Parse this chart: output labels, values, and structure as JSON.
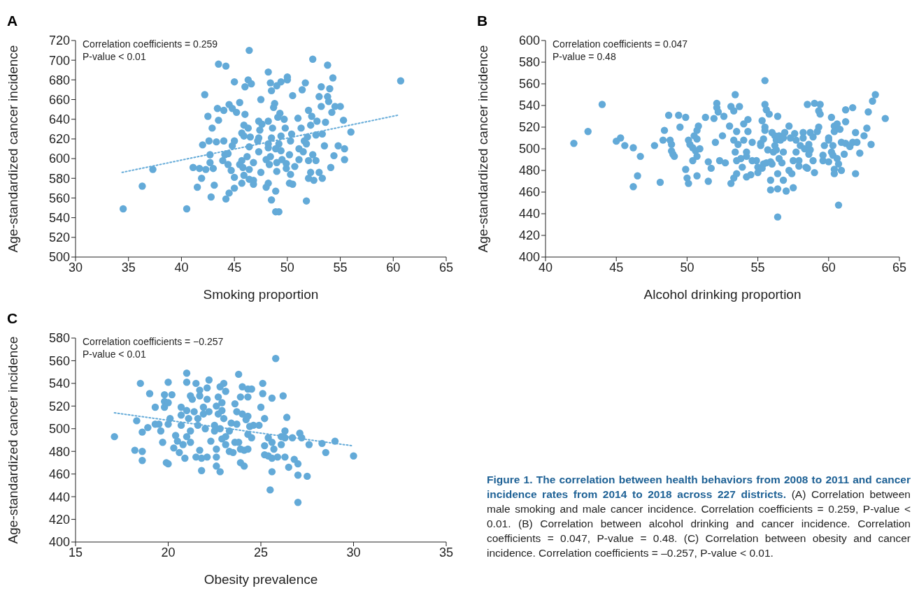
{
  "chart_data": [
    {
      "type": "scatter",
      "title": "A",
      "xlabel": "Smoking proportion",
      "ylabel": "Age-standardized cancer incidence",
      "annotations": [
        "Correlation coefficients = 0.259",
        "P-value < 0.01"
      ],
      "xlim": [
        30,
        65
      ],
      "xticks": [
        30,
        35,
        40,
        45,
        50,
        55,
        60,
        65
      ],
      "ylim": [
        500,
        720
      ],
      "yticks": [
        500,
        520,
        540,
        560,
        580,
        600,
        620,
        640,
        660,
        680,
        700,
        720
      ],
      "grid": false,
      "legend": false,
      "series": [
        {
          "type": "scatter",
          "marker": "circle",
          "color": "#63aad8",
          "x": [
            34.5,
            36.3,
            37.3,
            40.5,
            42.2,
            42.5,
            42.9,
            43.5,
            43.4,
            43.5,
            44.2,
            44.0,
            44.5,
            44.8,
            45.2,
            45.0,
            45.5,
            46.0,
            45.9,
            46.3,
            46.4,
            46.3,
            46.0,
            46.6,
            47.5,
            48.2,
            48.4,
            48.5,
            49.0,
            49.4,
            50.0,
            50.0,
            50.5,
            48.8,
            48.7,
            49.3,
            49.1,
            49.7,
            48.2,
            47.3,
            47.6,
            51.4,
            51.7,
            52.4,
            53.8,
            54.3,
            53.2,
            54.0,
            53.0,
            53.8,
            53.9,
            53.2,
            54.5,
            55.0,
            54.2,
            52.0,
            52.3,
            51.0,
            52.8,
            53.6,
            55.3,
            52.2,
            51.3,
            56.0,
            53.3,
            52.7,
            51.9,
            51.6,
            51.8,
            51.1,
            53.5,
            54.8,
            55.4,
            51.5,
            52.4,
            54.4,
            55.4,
            52.0,
            52.7,
            51.1,
            50.7,
            54.1,
            52.2,
            53.0,
            52.0,
            52.5,
            53.3,
            51.8,
            50.2,
            50.3,
            50.4,
            49.8,
            49.4,
            49.2,
            48.6,
            48.5,
            48.2,
            48.9,
            49.4,
            48.4,
            48.0,
            48.3,
            49.0,
            49.5,
            49.9,
            49.9,
            49.0,
            50.3,
            50.2,
            50.5,
            48.2,
            48.0,
            48.9,
            48.5,
            48.9,
            49.2,
            47.5,
            47.3,
            47.4,
            47.3,
            47.2,
            46.4,
            46.5,
            45.9,
            45.7,
            46.2,
            46.8,
            45.7,
            45.5,
            45.8,
            46.4,
            45.9,
            46.4,
            46.8,
            46.8,
            45.7,
            45.0,
            45.0,
            44.5,
            44.2,
            44.7,
            44.4,
            43.9,
            44.1,
            44.4,
            44.0,
            45.0,
            44.8,
            43.3,
            42.6,
            42.0,
            42.7,
            42.7,
            43.0,
            41.1,
            41.7,
            42.3,
            41.9,
            41.5,
            43.1,
            42.8,
            48.2,
            60.7
          ],
          "values": [
            549,
            572,
            589,
            549,
            665,
            643,
            631,
            639,
            651,
            696,
            694,
            649,
            655,
            651,
            647,
            678,
            657,
            645,
            634,
            631,
            710,
            680,
            673,
            676,
            660,
            688,
            677,
            669,
            674,
            678,
            683,
            680,
            664,
            656,
            652,
            646,
            642,
            640,
            638,
            638,
            635,
            670,
            677,
            701,
            695,
            682,
            673,
            671,
            663,
            663,
            658,
            653,
            653,
            653,
            647,
            649,
            643,
            641,
            638,
            637,
            639,
            634,
            631,
            627,
            625,
            624,
            622,
            618,
            615,
            610,
            613,
            613,
            610,
            607,
            604,
            603,
            599,
            598,
            598,
            599,
            592,
            591,
            586,
            586,
            580,
            578,
            580,
            557,
            604,
            618,
            625,
            631,
            623,
            615,
            631,
            621,
            611,
            610,
            608,
            602,
            599,
            594,
            596,
            599,
            595,
            590,
            587,
            584,
            575,
            574,
            575,
            571,
            567,
            558,
            546,
            546,
            586,
            607,
            629,
            621,
            618,
            612,
            622,
            623,
            626,
            602,
            596,
            598,
            594,
            591,
            589,
            583,
            579,
            578,
            574,
            575,
            581,
            570,
            565,
            559,
            588,
            594,
            598,
            604,
            605,
            618,
            618,
            613,
            617,
            618,
            614,
            604,
            596,
            590,
            591,
            590,
            589,
            580,
            571,
            573,
            561,
            615,
            679
          ]
        },
        {
          "type": "line",
          "marker": "none",
          "color": "#63aad8",
          "line_style": "dotted",
          "x": [
            34.4,
            60.4
          ],
          "values": [
            586,
            644
          ]
        }
      ]
    },
    {
      "type": "scatter",
      "title": "B",
      "xlabel": "Alcohol drinking proportion",
      "ylabel": "Age-standardized cancer incidence",
      "annotations": [
        "Correlation coefficients = 0.047",
        "P-value = 0.48"
      ],
      "xlim": [
        40,
        65
      ],
      "xticks": [
        40,
        45,
        50,
        55,
        60,
        65
      ],
      "ylim": [
        400,
        600
      ],
      "yticks": [
        400,
        420,
        440,
        460,
        480,
        500,
        520,
        540,
        560,
        580,
        600
      ],
      "grid": false,
      "legend": false,
      "series": [
        {
          "type": "scatter",
          "marker": "circle",
          "color": "#63aad8",
          "x": [
            42.0,
            43.0,
            44.0,
            45.0,
            45.3,
            45.6,
            46.2,
            46.7,
            46.5,
            46.2,
            47.7,
            48.1,
            48.3,
            48.4,
            48.7,
            48.8,
            48.9,
            48.9,
            49.0,
            49.1,
            49.4,
            49.5,
            49.9,
            50.1,
            50.2,
            50.4,
            50.6,
            50.9,
            50.7,
            50.4,
            49.9,
            50.0,
            50.1,
            50.7,
            50.5,
            50.7,
            50.7,
            50.8,
            51.3,
            51.5,
            51.5,
            51.7,
            51.9,
            52.1,
            52.1,
            52.2,
            52.6,
            52.0,
            52.3,
            52.7,
            52.5,
            53.0,
            53.1,
            53.3,
            53.4,
            53.7,
            54.0,
            54.3,
            54.3,
            53.5,
            54.0,
            53.3,
            53.6,
            53.4,
            54.2,
            54.2,
            53.8,
            53.5,
            53.9,
            53.5,
            53.3,
            53.1,
            54.2,
            54.5,
            54.6,
            54.6,
            54.9,
            55.0,
            55.0,
            55.2,
            55.2,
            55.4,
            55.3,
            55.5,
            55.5,
            55.5,
            55.5,
            55.6,
            55.8,
            55.7,
            55.4,
            55.3,
            55.6,
            55.9,
            56.0,
            56.0,
            56.2,
            56.2,
            56.3,
            56.1,
            56.3,
            56.4,
            56.5,
            56.6,
            56.8,
            56.9,
            57.2,
            57.3,
            57.6,
            57.7,
            56.5,
            56.7,
            56.8,
            56.4,
            55.9,
            56.8,
            55.9,
            56.4,
            57.0,
            57.5,
            57.2,
            57.4,
            56.4,
            57.5,
            57.9,
            57.9,
            57.7,
            58.0,
            58.2,
            58.2,
            58.3,
            58.4,
            58.5,
            58.6,
            58.7,
            58.6,
            58.7,
            58.9,
            58.9,
            59.0,
            58.5,
            59.0,
            59.4,
            59.3,
            59.4,
            59.3,
            59.2,
            59.6,
            59.6,
            59.7,
            60.0,
            60.2,
            60.0,
            60.3,
            60.2,
            60.4,
            60.6,
            60.4,
            60.8,
            61.2,
            61.2,
            61.7,
            60.0,
            60.3,
            60.6,
            60.7,
            60.4,
            60.4,
            60.9,
            60.7,
            60.9,
            61.1,
            61.2,
            61.5,
            61.7,
            61.9,
            62.0,
            62.2,
            61.9,
            62.5,
            62.7,
            62.8,
            63.0,
            63.1,
            63.3,
            64.0
          ],
          "values": [
            505,
            516,
            541,
            507,
            510,
            503,
            501,
            493,
            475,
            465,
            503,
            469,
            508,
            517,
            531,
            508,
            504,
            498,
            495,
            493,
            531,
            520,
            529,
            508,
            504,
            501,
            498,
            500,
            493,
            489,
            481,
            473,
            468,
            475,
            512,
            509,
            517,
            521,
            529,
            470,
            488,
            482,
            528,
            542,
            538,
            534,
            530,
            506,
            489,
            487,
            512,
            521,
            539,
            535,
            550,
            539,
            523,
            527,
            516,
            516,
            508,
            508,
            504,
            497,
            497,
            493,
            491,
            489,
            483,
            477,
            473,
            468,
            474,
            476,
            506,
            489,
            489,
            483,
            478,
            505,
            503,
            509,
            526,
            520,
            517,
            563,
            541,
            536,
            532,
            499,
            486,
            482,
            487,
            488,
            486,
            515,
            512,
            503,
            508,
            497,
            499,
            530,
            512,
            508,
            510,
            515,
            521,
            510,
            514,
            508,
            491,
            487,
            497,
            477,
            471,
            471,
            462,
            463,
            461,
            464,
            480,
            477,
            437,
            489,
            489,
            484,
            497,
            503,
            515,
            510,
            500,
            483,
            482,
            504,
            499,
            495,
            515,
            511,
            489,
            478,
            541,
            542,
            541,
            535,
            532,
            520,
            516,
            494,
            489,
            503,
            510,
            529,
            508,
            503,
            497,
            521,
            523,
            516,
            518,
            525,
            536,
            538,
            488,
            494,
            491,
            486,
            481,
            477,
            480,
            448,
            506,
            495,
            505,
            502,
            506,
            515,
            506,
            496,
            477,
            512,
            519,
            534,
            504,
            544,
            550,
            528
          ]
        }
      ]
    },
    {
      "type": "scatter",
      "title": "C",
      "xlabel": "Obesity prevalence",
      "ylabel": "Age-standardized cancer incidence",
      "annotations": [
        "Correlation coefficients = −0.257",
        "P-value < 0.01"
      ],
      "xlim": [
        15,
        35
      ],
      "xticks": [
        15,
        20,
        25,
        30,
        35
      ],
      "ylim": [
        400,
        580
      ],
      "yticks": [
        400,
        420,
        440,
        460,
        480,
        500,
        520,
        540,
        560,
        580
      ],
      "grid": false,
      "legend": false,
      "series": [
        {
          "type": "scatter",
          "marker": "circle",
          "color": "#63aad8",
          "x": [
            17.1,
            18.2,
            18.6,
            18.6,
            18.3,
            18.6,
            18.9,
            18.5,
            19.0,
            19.3,
            19.3,
            19.5,
            19.6,
            19.7,
            19.9,
            20.0,
            19.8,
            19.8,
            19.8,
            20.0,
            20.0,
            20.2,
            20.1,
            20.0,
            20.3,
            20.6,
            20.9,
            20.5,
            20.7,
            20.7,
            20.7,
            20.4,
            20.8,
            21.0,
            21.0,
            21.0,
            21.1,
            21.2,
            21.3,
            21.5,
            21.2,
            21.0,
            21.2,
            21.5,
            21.7,
            21.8,
            21.7,
            21.7,
            21.4,
            21.6,
            21.6,
            21.8,
            22.1,
            22.1,
            22.2,
            22.1,
            21.9,
            21.9,
            22.0,
            22.2,
            22.3,
            22.6,
            22.6,
            22.8,
            22.6,
            22.5,
            22.5,
            22.7,
            22.6,
            22.7,
            22.9,
            22.8,
            23.0,
            23.1,
            22.9,
            23.0,
            22.8,
            22.9,
            23.1,
            23.3,
            23.5,
            23.1,
            23.3,
            23.4,
            23.6,
            23.7,
            23.7,
            23.6,
            23.8,
            23.9,
            24.1,
            24.3,
            23.9,
            24.1,
            23.9,
            23.8,
            24.0,
            24.3,
            24.5,
            24.3,
            24.0,
            24.3,
            24.2,
            24.4,
            24.3,
            24.5,
            24.6,
            25.0,
            25.1,
            25.1,
            24.9,
            25.2,
            25.6,
            25.8,
            26.2,
            26.4,
            25.4,
            25.6,
            25.7,
            25.2,
            25.2,
            25.4,
            25.6,
            25.9,
            25.6,
            25.5,
            26.1,
            26.1,
            26.3,
            26.3,
            26.3,
            26.5,
            26.7,
            26.8,
            27.0,
            27.0,
            27.0,
            27.1,
            27.2,
            27.5,
            27.6,
            28.3,
            28.5,
            29.0,
            30.0
          ],
          "values": [
            493,
            481,
            480,
            472,
            507,
            497,
            501,
            540,
            531,
            519,
            504,
            504,
            498,
            488,
            470,
            469,
            519,
            524,
            530,
            523,
            541,
            530,
            509,
            504,
            483,
            479,
            474,
            489,
            519,
            512,
            503,
            494,
            486,
            549,
            541,
            516,
            509,
            529,
            526,
            540,
            498,
            493,
            488,
            475,
            481,
            463,
            534,
            529,
            515,
            509,
            503,
            474,
            475,
            536,
            543,
            526,
            519,
            513,
            500,
            515,
            489,
            475,
            467,
            462,
            482,
            498,
            503,
            513,
            520,
            528,
            523,
            537,
            540,
            533,
            516,
            509,
            500,
            491,
            486,
            480,
            479,
            493,
            498,
            505,
            522,
            515,
            504,
            488,
            488,
            482,
            481,
            482,
            470,
            467,
            528,
            548,
            537,
            535,
            535,
            528,
            513,
            511,
            508,
            502,
            495,
            492,
            503,
            519,
            540,
            531,
            503,
            509,
            527,
            562,
            529,
            510,
            492,
            488,
            482,
            485,
            477,
            476,
            474,
            475,
            462,
            446,
            486,
            493,
            498,
            492,
            475,
            466,
            492,
            473,
            469,
            459,
            435,
            496,
            492,
            458,
            486,
            487,
            479,
            489,
            476
          ]
        },
        {
          "type": "line",
          "marker": "none",
          "color": "#63aad8",
          "line_style": "dotted",
          "x": [
            17.1,
            29.9
          ],
          "values": [
            514,
            485
          ]
        }
      ]
    },
    {
      "type": "other",
      "title": "Figure 1. The correlation between health behaviors from 2008 to 2011 and cancer incidence rates from 2014 to 2018 across 227 districts.",
      "annotations": [
        "(A) Correlation between male smoking and male cancer incidence. Correlation coefficients = 0.259, P-value < 0.01. (B) Correlation between alcohol drinking and cancer incidence. Correlation coefficients = 0.047, P-value = 0.48. (C) Correlation between obesity and cancer incidence. Correlation coefficients = –0.257, P-value < 0.01."
      ]
    }
  ]
}
